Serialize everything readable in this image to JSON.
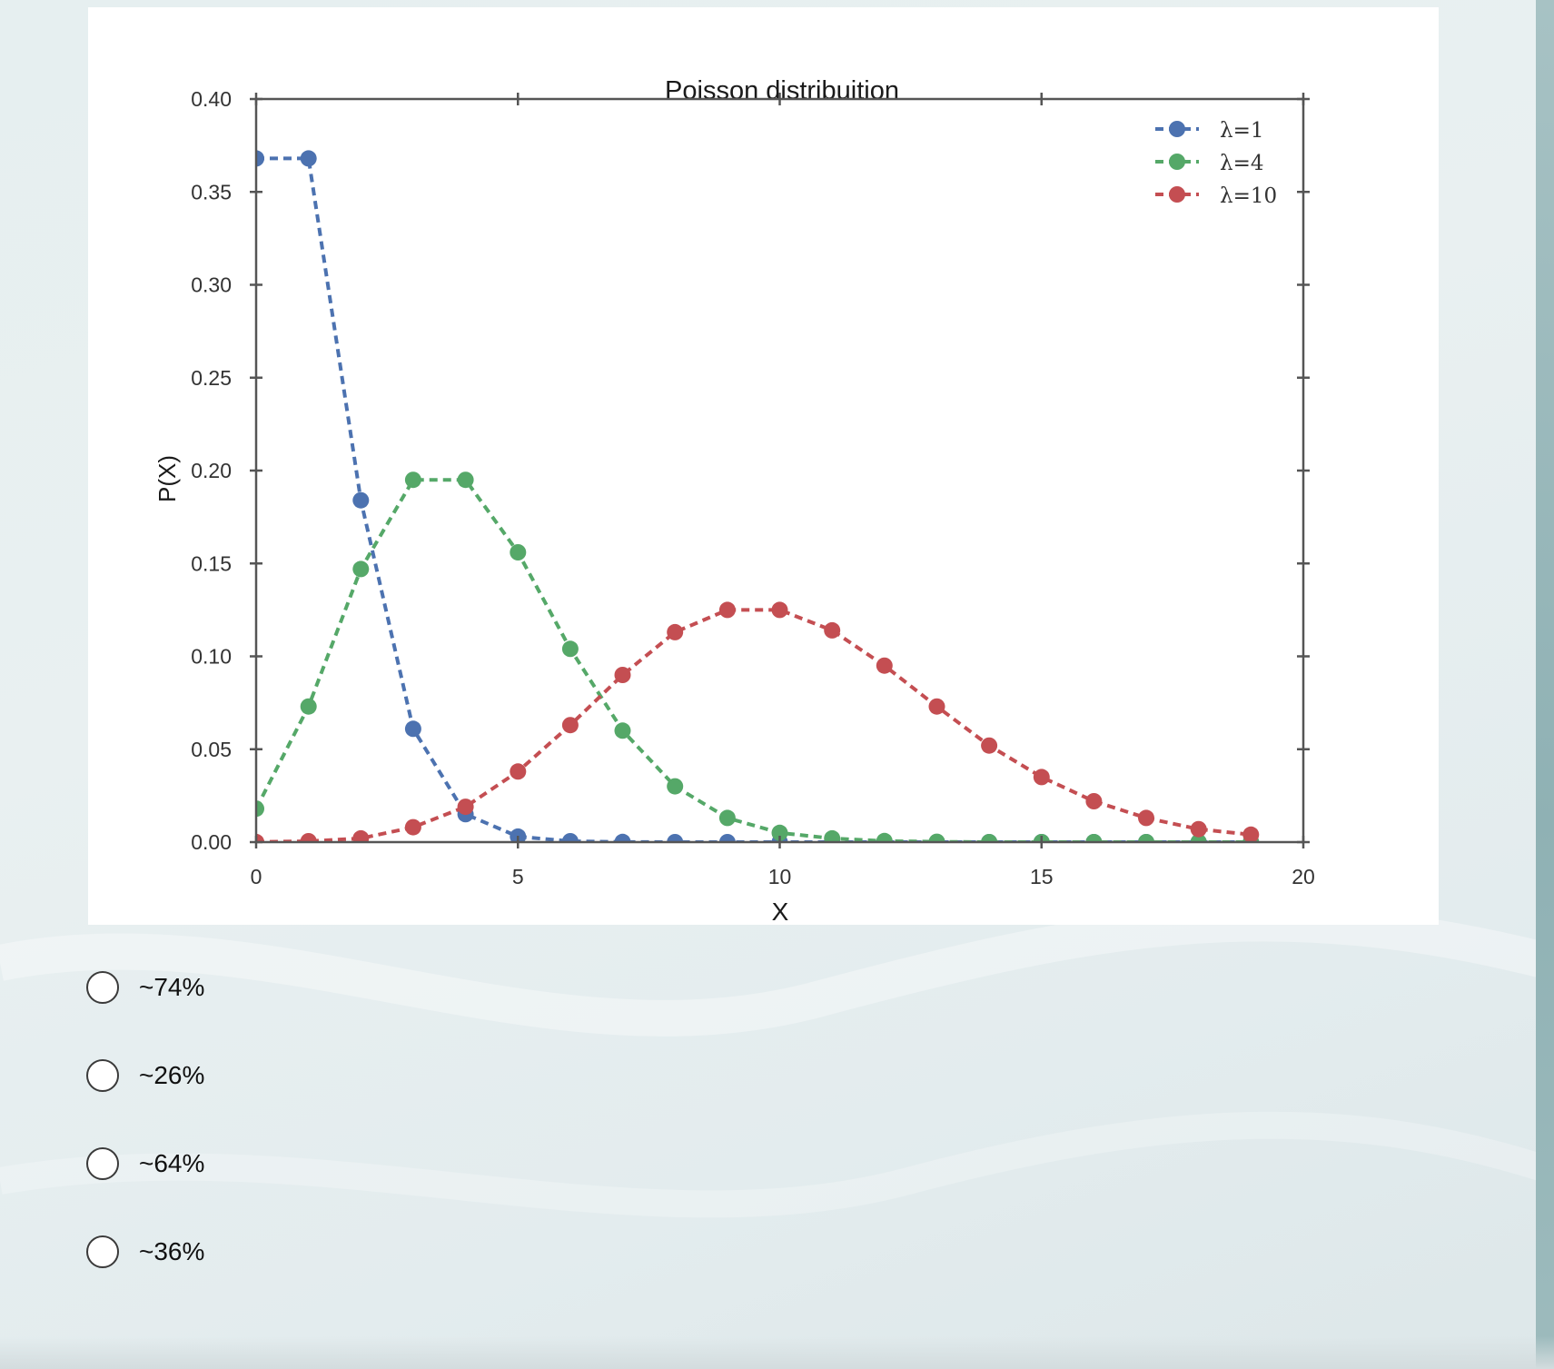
{
  "question": {
    "options": [
      {
        "label": "~74%"
      },
      {
        "label": "~26%"
      },
      {
        "label": "~64%"
      },
      {
        "label": "~36%"
      }
    ]
  },
  "chart_data": {
    "type": "line",
    "title": "Poisson distribuition",
    "xlabel": "X",
    "ylabel": "P(X)",
    "xlim": [
      0,
      20
    ],
    "ylim": [
      0,
      0.4
    ],
    "xticks": [
      0,
      5,
      10,
      15,
      20
    ],
    "yticks": [
      0.0,
      0.05,
      0.1,
      0.15,
      0.2,
      0.25,
      0.3,
      0.35,
      0.4
    ],
    "grid": false,
    "line_style": "dashed",
    "marker": "circle",
    "legend_position": "top-right",
    "x": [
      0,
      1,
      2,
      3,
      4,
      5,
      6,
      7,
      8,
      9,
      10,
      11,
      12,
      13,
      14,
      15,
      16,
      17,
      18,
      19
    ],
    "series": [
      {
        "name": "λ=1",
        "color": "#4c72b0",
        "values": [
          0.368,
          0.368,
          0.184,
          0.061,
          0.015,
          0.003,
          0.0005,
          0.0001,
          0,
          0,
          0,
          0,
          0,
          0,
          0,
          0,
          0,
          0,
          0,
          0
        ]
      },
      {
        "name": "λ=4",
        "color": "#55a868",
        "values": [
          0.018,
          0.073,
          0.147,
          0.195,
          0.195,
          0.156,
          0.104,
          0.06,
          0.03,
          0.013,
          0.005,
          0.002,
          0.0006,
          0.0002,
          0,
          0,
          0,
          0,
          0,
          0
        ]
      },
      {
        "name": "λ=10",
        "color": "#c44e52",
        "values": [
          5e-05,
          0.0005,
          0.002,
          0.008,
          0.019,
          0.038,
          0.063,
          0.09,
          0.113,
          0.125,
          0.125,
          0.114,
          0.095,
          0.073,
          0.052,
          0.035,
          0.022,
          0.013,
          0.007,
          0.004
        ]
      }
    ]
  }
}
